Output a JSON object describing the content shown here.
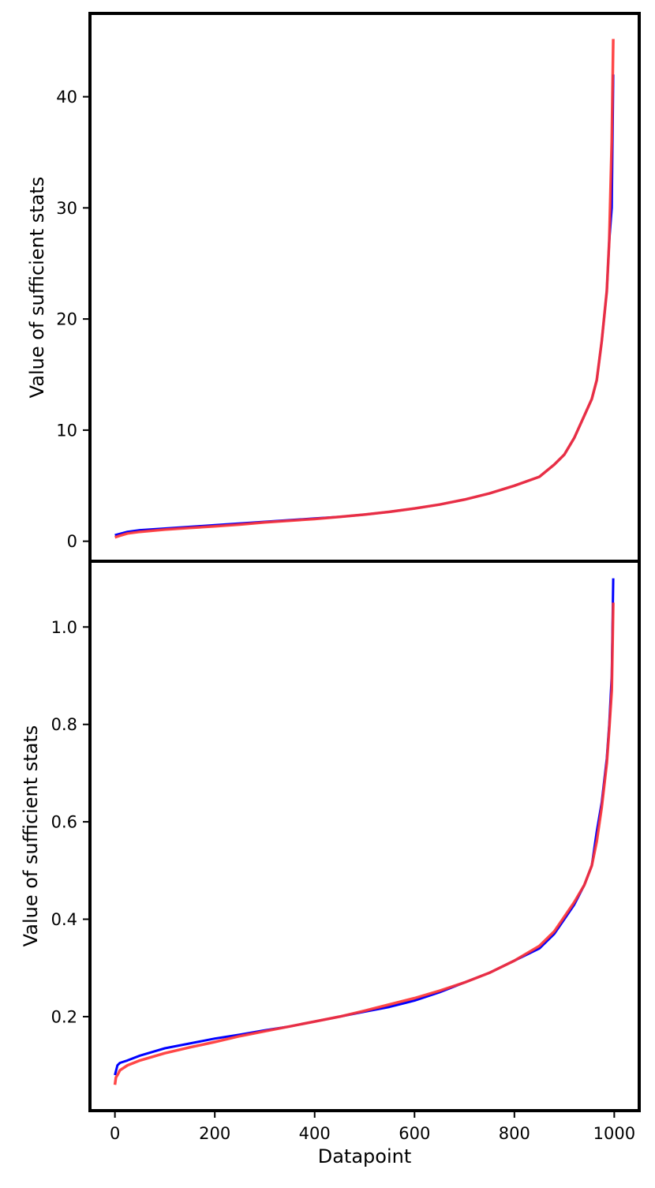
{
  "chart_data": [
    {
      "type": "line",
      "ylabel": "Value of sufficient stats",
      "xlabel": "",
      "xlim": [
        -50,
        1050
      ],
      "ylim": [
        -1.8,
        47.5
      ],
      "yticks": [
        0,
        10,
        20,
        30,
        40
      ],
      "grid": false,
      "series": [
        {
          "color": "#0000ff",
          "x": [
            0,
            25,
            50,
            100,
            150,
            200,
            250,
            300,
            350,
            400,
            450,
            500,
            550,
            600,
            650,
            700,
            750,
            800,
            850,
            880,
            900,
            920,
            940,
            955,
            965,
            975,
            985,
            990,
            995,
            998
          ],
          "values": [
            0.55,
            0.85,
            1.0,
            1.15,
            1.3,
            1.45,
            1.6,
            1.75,
            1.9,
            2.05,
            2.2,
            2.4,
            2.65,
            2.95,
            3.3,
            3.75,
            4.3,
            5.0,
            5.8,
            6.9,
            7.8,
            9.3,
            11.3,
            12.8,
            14.5,
            18.0,
            22.5,
            27.0,
            30.0,
            42.0
          ]
        },
        {
          "color": "#ff3333",
          "x": [
            0,
            10,
            25,
            50,
            100,
            150,
            200,
            250,
            300,
            350,
            400,
            450,
            500,
            550,
            600,
            650,
            700,
            750,
            800,
            850,
            880,
            900,
            920,
            940,
            955,
            965,
            975,
            985,
            990,
            995,
            998
          ],
          "values": [
            0.35,
            0.5,
            0.7,
            0.85,
            1.05,
            1.2,
            1.35,
            1.5,
            1.7,
            1.85,
            2.0,
            2.2,
            2.4,
            2.65,
            2.95,
            3.3,
            3.75,
            4.3,
            5.0,
            5.8,
            6.9,
            7.8,
            9.3,
            11.3,
            12.8,
            14.5,
            18.0,
            22.5,
            27.0,
            36.0,
            45.2
          ]
        }
      ]
    },
    {
      "type": "line",
      "ylabel": "Value of sufficient stats",
      "xlabel": "Datapoint",
      "xlim": [
        -50,
        1050
      ],
      "ylim": [
        0.007,
        1.135
      ],
      "xticks": [
        0,
        200,
        400,
        600,
        800,
        1000
      ],
      "yticks": [
        0.2,
        0.4,
        0.6,
        0.8,
        1.0
      ],
      "grid": false,
      "series": [
        {
          "color": "#0000ff",
          "x": [
            0,
            5,
            10,
            25,
            50,
            100,
            150,
            200,
            250,
            300,
            350,
            400,
            450,
            500,
            550,
            600,
            650,
            700,
            750,
            800,
            850,
            880,
            900,
            920,
            940,
            955,
            965,
            975,
            985,
            990,
            995,
            998
          ],
          "values": [
            0.08,
            0.1,
            0.105,
            0.11,
            0.12,
            0.135,
            0.145,
            0.155,
            0.163,
            0.172,
            0.18,
            0.19,
            0.2,
            0.21,
            0.22,
            0.233,
            0.25,
            0.27,
            0.29,
            0.315,
            0.34,
            0.37,
            0.4,
            0.43,
            0.47,
            0.51,
            0.58,
            0.64,
            0.73,
            0.8,
            0.9,
            1.1
          ]
        },
        {
          "color": "#ff3333",
          "x": [
            0,
            2,
            5,
            10,
            25,
            50,
            100,
            150,
            200,
            250,
            300,
            350,
            400,
            450,
            500,
            550,
            600,
            650,
            700,
            750,
            800,
            850,
            880,
            900,
            920,
            940,
            955,
            965,
            975,
            985,
            990,
            995,
            998
          ],
          "values": [
            0.06,
            0.075,
            0.08,
            0.09,
            0.1,
            0.11,
            0.125,
            0.137,
            0.148,
            0.16,
            0.17,
            0.18,
            0.19,
            0.2,
            0.212,
            0.225,
            0.238,
            0.253,
            0.27,
            0.29,
            0.315,
            0.345,
            0.375,
            0.405,
            0.435,
            0.47,
            0.51,
            0.56,
            0.63,
            0.72,
            0.79,
            0.87,
            1.05
          ]
        }
      ]
    }
  ]
}
